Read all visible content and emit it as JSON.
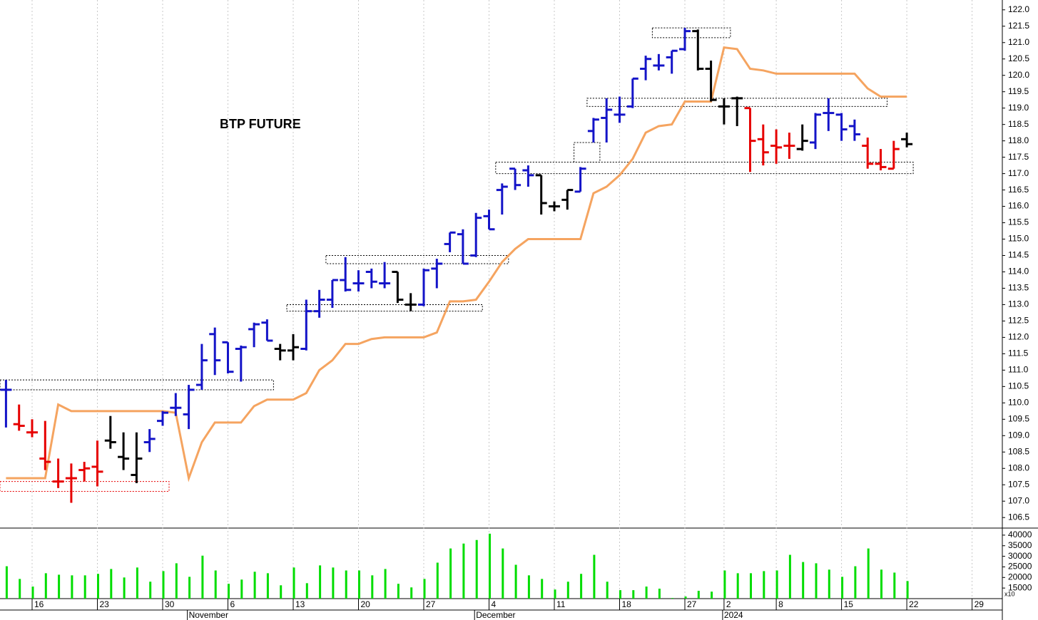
{
  "chart_data": {
    "type": "ohlc",
    "title": "BTP FUTURE",
    "categories": [
      null,
      null,
      "16",
      null,
      null,
      null,
      null,
      "23",
      null,
      null,
      null,
      null,
      "30",
      null,
      null,
      null,
      null,
      "6",
      null,
      null,
      null,
      null,
      "13",
      null,
      null,
      null,
      null,
      "20",
      null,
      null,
      null,
      null,
      "27",
      null,
      null,
      null,
      null,
      "4",
      null,
      null,
      null,
      null,
      "11",
      null,
      null,
      null,
      null,
      "18",
      null,
      null,
      null,
      null,
      "27",
      null,
      null,
      "2",
      null,
      null,
      null,
      "8",
      null,
      null,
      null,
      null,
      "15",
      null,
      null,
      null,
      null,
      "22",
      null,
      null,
      null,
      null,
      "29",
      null,
      null
    ],
    "months": [
      null,
      null,
      null,
      null,
      null,
      null,
      null,
      null,
      null,
      null,
      null,
      null,
      null,
      null,
      "November",
      null,
      null,
      null,
      null,
      null,
      null,
      null,
      null,
      null,
      null,
      null,
      null,
      null,
      null,
      null,
      null,
      null,
      null,
      null,
      null,
      null,
      "December",
      null,
      null,
      null,
      null,
      null,
      null,
      null,
      null,
      null,
      null,
      null,
      null,
      null,
      null,
      null,
      null,
      null,
      null,
      "2024",
      null,
      null,
      null,
      null,
      null,
      null,
      null,
      null,
      null,
      null,
      null,
      null,
      null,
      null,
      null,
      null,
      null,
      null,
      null,
      null,
      null
    ],
    "ohlc": {
      "open": [
        110.4,
        109.35,
        109.1,
        108.3,
        107.6,
        107.7,
        107.95,
        108.05,
        108.85,
        108.35,
        107.8,
        108.8,
        109.45,
        109.85,
        109.65,
        110.55,
        112.1,
        111.85,
        111.65,
        112.25,
        112.45,
        111.65,
        111.6,
        111.65,
        112.8,
        113.15,
        113.75,
        113.65,
        114.0,
        113.65,
        114.0,
        113.0,
        113.0,
        114.1,
        114.85,
        115.15,
        114.5,
        115.7,
        116.5,
        117.15,
        117.1,
        116.95,
        116.0,
        116.2,
        116.45,
        118.3,
        118.7,
        118.8,
        119.05,
        120.2,
        120.3,
        120.55,
        120.8,
        121.35,
        120.2,
        119.05,
        119.3,
        119.0,
        118.05,
        117.85,
        117.85,
        117.75,
        117.95,
        118.85,
        118.8,
        118.45,
        117.85,
        117.3,
        117.15,
        118.05,
        null,
        null,
        null,
        null,
        null,
        null,
        null
      ],
      "high": [
        110.7,
        109.95,
        109.5,
        109.45,
        108.3,
        108.15,
        108.2,
        108.85,
        109.6,
        109.1,
        109.1,
        109.2,
        109.75,
        110.3,
        110.55,
        111.8,
        112.3,
        111.85,
        111.75,
        112.45,
        112.55,
        111.8,
        112.1,
        113.15,
        113.45,
        113.75,
        114.45,
        114.05,
        114.1,
        114.3,
        114.0,
        113.35,
        114.1,
        114.4,
        115.2,
        115.3,
        115.8,
        115.9,
        116.7,
        117.15,
        117.25,
        116.95,
        116.15,
        116.5,
        117.2,
        118.7,
        119.3,
        119.35,
        119.9,
        120.6,
        120.65,
        120.75,
        121.45,
        121.4,
        120.45,
        119.3,
        119.35,
        119.0,
        118.5,
        118.35,
        118.25,
        118.5,
        118.85,
        119.3,
        118.85,
        118.65,
        118.1,
        117.75,
        118.0,
        118.25,
        null,
        null,
        null,
        null,
        null,
        null,
        null
      ],
      "low": [
        109.25,
        109.15,
        108.95,
        107.95,
        107.4,
        106.95,
        107.6,
        107.45,
        108.6,
        107.95,
        107.55,
        108.5,
        109.3,
        109.6,
        109.2,
        110.4,
        110.85,
        110.9,
        110.65,
        111.7,
        111.9,
        111.3,
        111.3,
        111.6,
        112.6,
        112.9,
        113.4,
        113.4,
        113.5,
        113.5,
        113.05,
        112.8,
        112.95,
        113.5,
        114.6,
        114.25,
        114.45,
        115.3,
        115.75,
        116.5,
        116.6,
        115.75,
        115.85,
        115.9,
        116.45,
        117.95,
        117.95,
        118.55,
        119.0,
        119.85,
        120.15,
        120.05,
        120.75,
        120.15,
        119.2,
        118.5,
        118.45,
        117.05,
        117.25,
        117.3,
        117.45,
        117.7,
        117.75,
        118.3,
        118.0,
        118.0,
        117.15,
        117.1,
        117.15,
        117.8,
        null,
        null,
        null,
        null,
        null,
        null,
        null
      ],
      "close": [
        110.4,
        109.3,
        109.1,
        108.2,
        107.6,
        107.7,
        108.0,
        107.9,
        108.8,
        108.3,
        108.3,
        108.9,
        109.7,
        109.85,
        110.4,
        111.3,
        111.3,
        110.95,
        111.7,
        112.4,
        111.9,
        111.6,
        111.7,
        112.8,
        113.15,
        113.75,
        113.45,
        113.65,
        113.7,
        113.65,
        113.15,
        113.0,
        114.05,
        114.25,
        115.2,
        114.25,
        115.65,
        115.3,
        116.6,
        116.65,
        116.95,
        116.1,
        116.0,
        116.5,
        117.15,
        118.65,
        118.95,
        118.8,
        119.9,
        120.5,
        120.3,
        120.75,
        121.35,
        120.2,
        119.25,
        119.05,
        119.3,
        118.0,
        117.65,
        117.8,
        117.85,
        118.0,
        118.8,
        118.85,
        118.35,
        118.2,
        117.3,
        117.2,
        117.75,
        117.9,
        null,
        null,
        null,
        null,
        null,
        null,
        null
      ],
      "colors": [
        "#1414c8",
        "#e60000",
        "#e60000",
        "#e60000",
        "#e60000",
        "#e60000",
        "#e60000",
        "#e60000",
        "#000000",
        "#000000",
        "#000000",
        "#1414c8",
        "#1414c8",
        "#1414c8",
        "#1414c8",
        "#1414c8",
        "#1414c8",
        "#1414c8",
        "#1414c8",
        "#1414c8",
        "#1414c8",
        "#000000",
        "#000000",
        "#1414c8",
        "#1414c8",
        "#1414c8",
        "#1414c8",
        "#1414c8",
        "#1414c8",
        "#1414c8",
        "#000000",
        "#000000",
        "#1414c8",
        "#1414c8",
        "#1414c8",
        "#1414c8",
        "#1414c8",
        "#1414c8",
        "#1414c8",
        "#1414c8",
        "#1414c8",
        "#000000",
        "#000000",
        "#000000",
        "#1414c8",
        "#1414c8",
        "#1414c8",
        "#1414c8",
        "#1414c8",
        "#1414c8",
        "#1414c8",
        "#1414c8",
        "#1414c8",
        "#000000",
        "#000000",
        "#000000",
        "#000000",
        "#e60000",
        "#e60000",
        "#e60000",
        "#e60000",
        "#000000",
        "#1414c8",
        "#1414c8",
        "#1414c8",
        "#1414c8",
        "#e60000",
        "#e60000",
        "#e60000",
        "#000000",
        null,
        null,
        null,
        null,
        null,
        null,
        null
      ]
    },
    "stop_line": {
      "color": "#f5a460",
      "values": [
        107.7,
        107.7,
        107.7,
        107.7,
        109.95,
        109.75,
        109.75,
        109.75,
        109.75,
        109.75,
        109.75,
        109.75,
        109.75,
        109.7,
        107.7,
        108.8,
        109.4,
        109.4,
        109.4,
        109.9,
        110.1,
        110.1,
        110.1,
        110.3,
        111.0,
        111.3,
        111.8,
        111.8,
        111.95,
        112.0,
        112.0,
        112.0,
        112.0,
        112.15,
        113.1,
        113.1,
        113.15,
        113.7,
        114.3,
        114.7,
        115.0,
        115.0,
        115.0,
        115.0,
        115.0,
        116.4,
        116.6,
        116.95,
        117.45,
        118.25,
        118.45,
        118.5,
        119.2,
        119.2,
        119.2,
        120.85,
        120.8,
        120.2,
        120.15,
        120.05,
        120.05,
        120.05,
        120.05,
        120.05,
        120.05,
        120.05,
        119.6,
        119.35,
        119.35,
        119.35,
        null,
        null,
        null,
        null,
        null,
        null,
        null
      ]
    },
    "zones": [
      {
        "start": 0,
        "end": 20,
        "low": 110.4,
        "high": 110.7,
        "color": "#000000"
      },
      {
        "start": 0,
        "end": 12,
        "low": 107.3,
        "high": 107.6,
        "color": "#e60000"
      },
      {
        "start": 22,
        "end": 36,
        "low": 112.8,
        "high": 113.0,
        "color": "#000000"
      },
      {
        "start": 25,
        "end": 38,
        "low": 114.25,
        "high": 114.5,
        "color": "#000000"
      },
      {
        "start": 38,
        "end": 69,
        "low": 117.0,
        "high": 117.35,
        "color": "#000000"
      },
      {
        "start": 44,
        "end": 45,
        "low": 117.35,
        "high": 117.95,
        "color": "#000000"
      },
      {
        "start": 45,
        "end": 67,
        "low": 119.05,
        "high": 119.3,
        "color": "#000000"
      },
      {
        "start": 50,
        "end": 55,
        "low": 121.15,
        "high": 121.45,
        "color": "#000000"
      }
    ],
    "ylim": [
      106.2,
      122.3
    ],
    "yticks": [
      106.5,
      {
        "value": 107,
        "label": "107.0"
      },
      107.5,
      {
        "value": 108,
        "label": "108.0"
      },
      108.5,
      {
        "value": 109,
        "label": "109.0"
      },
      109.5,
      {
        "value": 110,
        "label": "110.0"
      },
      110.5,
      {
        "value": 111,
        "label": "111.0"
      },
      111.5,
      {
        "value": 112,
        "label": "112.0"
      },
      112.5,
      {
        "value": 113,
        "label": "113.0"
      },
      113.5,
      {
        "value": 114,
        "label": "114.0"
      },
      114.5,
      {
        "value": 115,
        "label": "115.0"
      },
      115.5,
      {
        "value": 116,
        "label": "116.0"
      },
      116.5,
      {
        "value": 117,
        "label": "117.0"
      },
      117.5,
      {
        "value": 118,
        "label": "118.0"
      },
      118.5,
      {
        "value": 119,
        "label": "119.0"
      },
      119.5,
      {
        "value": 120,
        "label": "120.0"
      },
      120.5,
      {
        "value": 121,
        "label": "121.0"
      },
      121.5,
      {
        "value": 122,
        "label": "122.0"
      }
    ],
    "volume": {
      "color": "#00dd00",
      "unit_label": "x10",
      "values": [
        25300,
        19300,
        15700,
        22000,
        21300,
        21000,
        21000,
        21700,
        24000,
        20000,
        24700,
        18000,
        23000,
        26700,
        20300,
        30300,
        23300,
        17000,
        19000,
        22700,
        22000,
        16300,
        24700,
        17300,
        25700,
        24700,
        23300,
        23300,
        21000,
        24000,
        17000,
        15300,
        19300,
        27000,
        33700,
        36000,
        37700,
        40700,
        33700,
        26000,
        21000,
        19300,
        14300,
        18000,
        21700,
        30700,
        18000,
        14000,
        14000,
        15700,
        14700,
        10300,
        11000,
        13700,
        13300,
        23300,
        22000,
        22000,
        23000,
        23300,
        30700,
        27300,
        26700,
        23700,
        20300,
        25300,
        33700,
        23700,
        22300,
        18300,
        null,
        null,
        null,
        null,
        null,
        null,
        null
      ],
      "ylim": [
        10000,
        43000
      ],
      "yticks": [
        15000,
        20000,
        25000,
        30000,
        35000,
        40000
      ]
    }
  }
}
